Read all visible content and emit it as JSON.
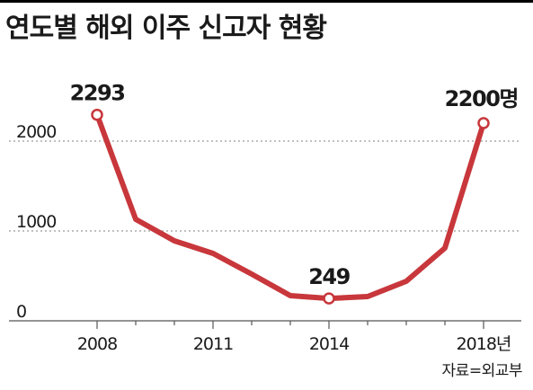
{
  "colors": {
    "line": "#c8373b",
    "grid": "#9a9a9a",
    "text": "#1a1a1a"
  },
  "title": "연도별 해외 이주 신고자 현황",
  "source": "자료=외교부",
  "chart_data": {
    "type": "line",
    "title": "연도별 해외 이주 신고자 현황",
    "xlabel": "",
    "ylabel": "",
    "unit": "명",
    "x": [
      2008,
      2009,
      2010,
      2011,
      2012,
      2013,
      2014,
      2015,
      2016,
      2017,
      2018
    ],
    "values": [
      2293,
      1130,
      890,
      750,
      520,
      280,
      249,
      270,
      440,
      810,
      2200
    ],
    "xticks": [
      2008,
      2011,
      2014,
      2018
    ],
    "xtick_labels": [
      "2008",
      "2011",
      "2014",
      "2018년"
    ],
    "yticks": [
      0,
      1000,
      2000
    ],
    "ytick_labels": [
      "0",
      "1000",
      "2000"
    ],
    "ylim": [
      0,
      2400
    ],
    "grid": "horizontal dotted",
    "annotations": [
      {
        "x": 2008,
        "label": "2293"
      },
      {
        "x": 2014,
        "label": "249"
      },
      {
        "x": 2018,
        "label": "2200명"
      }
    ]
  }
}
